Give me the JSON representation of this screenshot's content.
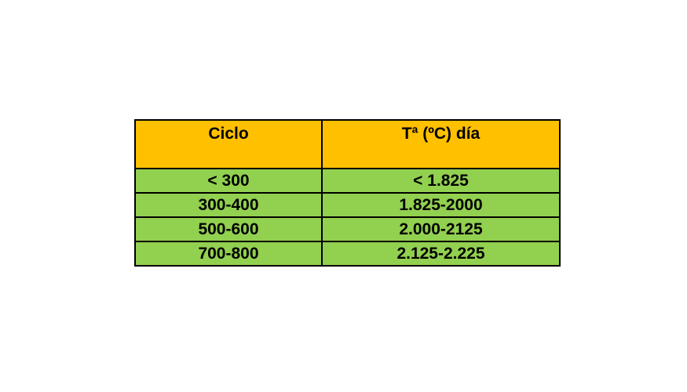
{
  "table": {
    "headers": [
      "Ciclo",
      "Tª (ºC) día"
    ],
    "rows": [
      [
        "< 300",
        "< 1.825"
      ],
      [
        "300-400",
        "1.825-2000"
      ],
      [
        "500-600",
        "2.000-2125"
      ],
      [
        "700-800",
        "2.125-2.225"
      ]
    ]
  },
  "colors": {
    "header_bg": "#ffc000",
    "body_bg": "#92d050",
    "border": "#000000"
  }
}
